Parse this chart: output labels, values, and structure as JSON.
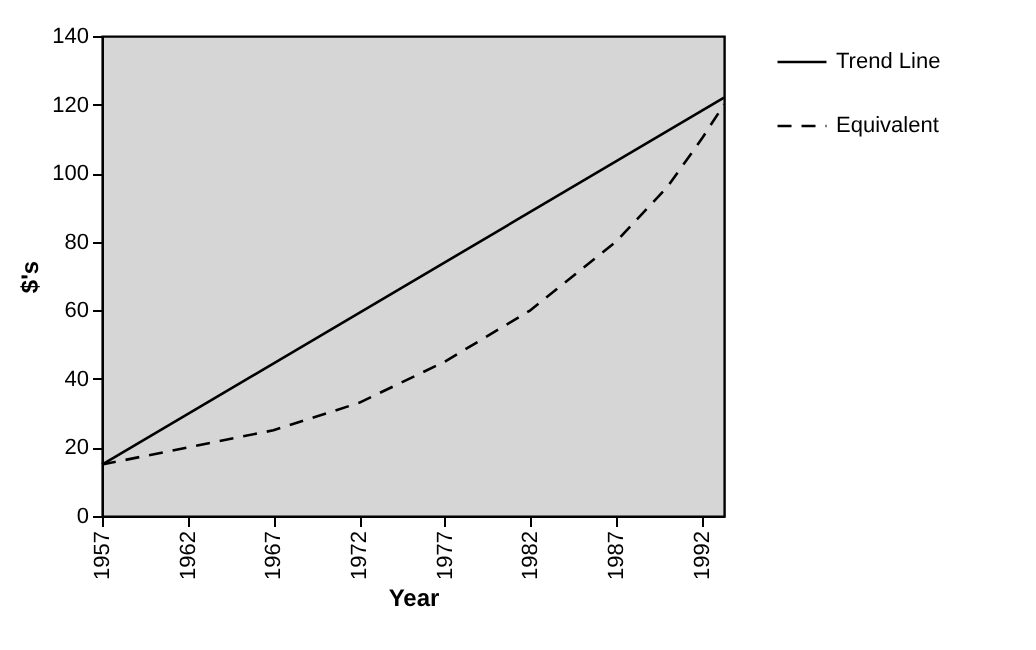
{
  "chart_data": {
    "type": "line",
    "xlabel": "Year",
    "ylabel": "$'s",
    "xlim": [
      1957,
      1993.3
    ],
    "xticks": [
      1957,
      1962,
      1967,
      1972,
      1977,
      1982,
      1987,
      1992
    ],
    "ylim": [
      0,
      140
    ],
    "yticks": [
      0,
      20,
      40,
      60,
      80,
      100,
      120,
      140
    ],
    "legend": "right",
    "grid": false,
    "series": [
      {
        "name": "Trend Line",
        "color": "#000000",
        "line_style": "solid",
        "x": [
          1957,
          1993.3
        ],
        "values": [
          15,
          122
        ]
      },
      {
        "name": "Equivalent",
        "color": "#000000",
        "line_style": "dashed",
        "x": [
          1957,
          1962,
          1967,
          1972,
          1977,
          1982,
          1987,
          1990,
          1992,
          1993.3
        ],
        "values": [
          15,
          20,
          25,
          33,
          45,
          60,
          80,
          96,
          110,
          120
        ]
      }
    ]
  }
}
